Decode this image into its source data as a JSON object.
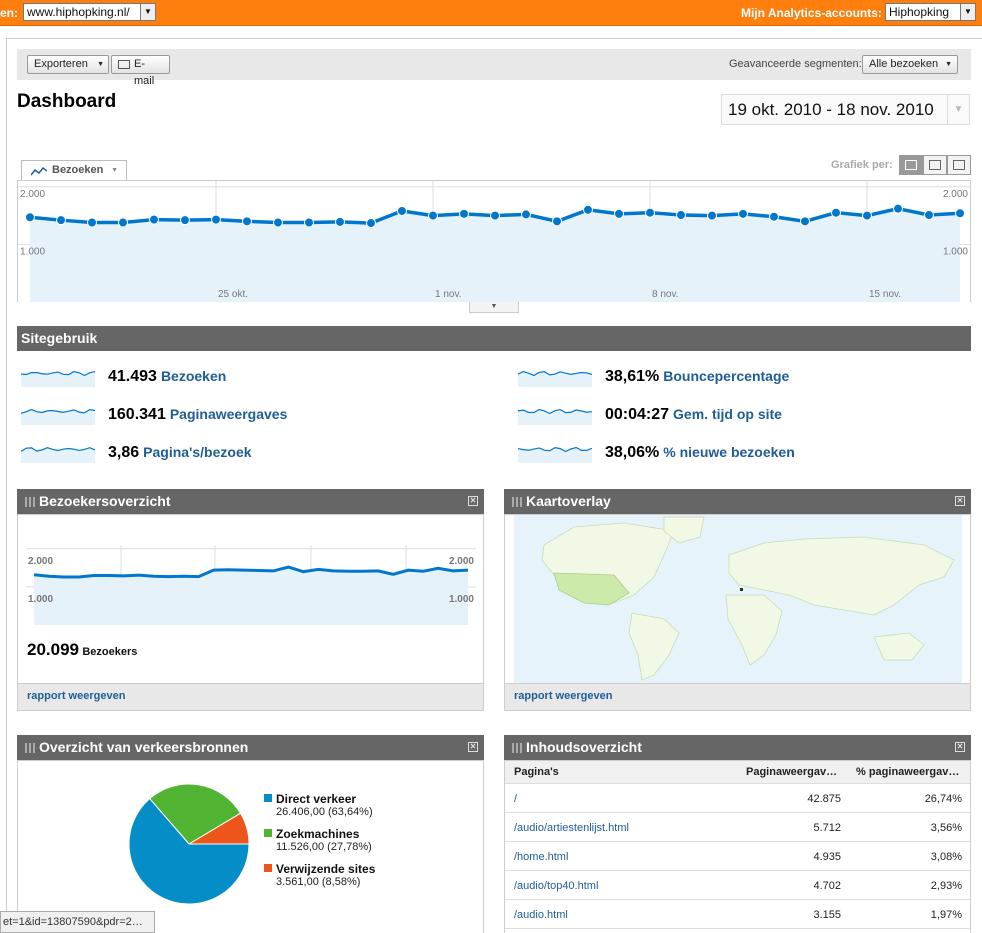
{
  "topbar": {
    "profile_label": "en:",
    "profile_value": "www.hiphopking.nl/",
    "accounts_label": "Mijn Analytics-accounts:",
    "accounts_value": "Hiphopking"
  },
  "toolbar": {
    "export_label": "Exporteren",
    "email_label": "E-mail",
    "segments_label": "Geavanceerde segmenten:",
    "segments_value": "Alle bezoeken"
  },
  "page_title": "Dashboard",
  "date_range": "19 okt. 2010 - 18 nov. 2010",
  "main_chart": {
    "metric_tab": "Bezoeken",
    "graph_per_label": "Grafiek per:"
  },
  "chart_data": [
    {
      "type": "line",
      "series": [
        {
          "values": [
            1470,
            1420,
            1380,
            1380,
            1430,
            1420,
            1430,
            1400,
            1380,
            1380,
            1390,
            1370,
            1580,
            1500,
            1530,
            1500,
            1520,
            1400,
            1600,
            1530,
            1550,
            1510,
            1500,
            1530,
            1480,
            1400,
            1550,
            1500,
            1620,
            1510,
            1540
          ]
        }
      ],
      "x_tick_labels": [
        "25 okt.",
        "1 nov.",
        "8 nov.",
        "15 nov."
      ],
      "y_tick_labels": [
        "2.000",
        "1.000"
      ],
      "ylim": [
        0,
        2100
      ]
    },
    {
      "type": "line",
      "series": [
        {
          "values": [
            1320,
            1280,
            1260,
            1260,
            1300,
            1300,
            1290,
            1310,
            1280,
            1270,
            1280,
            1270,
            1440,
            1450,
            1440,
            1430,
            1420,
            1520,
            1400,
            1460,
            1420,
            1410,
            1410,
            1420,
            1330,
            1440,
            1410,
            1490,
            1420,
            1440
          ]
        }
      ],
      "y_tick_labels": [
        "2.000",
        "1.000"
      ],
      "ylim": [
        0,
        2100
      ]
    },
    {
      "type": "pie",
      "values": [
        63.64,
        27.78,
        8.58
      ],
      "colors": [
        "#058dc7",
        "#50b432",
        "#ed561b"
      ]
    }
  ],
  "site_usage": {
    "title": "Sitegebruik",
    "metrics": [
      {
        "value": "41.493",
        "label": "Bezoeken"
      },
      {
        "value": "160.341",
        "label": "Paginaweergaves"
      },
      {
        "value": "3,86",
        "label": "Pagina's/bezoek"
      },
      {
        "value": "38,61%",
        "label": "Bouncepercentage"
      },
      {
        "value": "00:04:27",
        "label": "Gem. tijd op site"
      },
      {
        "value": "38,06%",
        "label": "% nieuwe bezoeken"
      }
    ]
  },
  "visitors_panel": {
    "title": "Bezoekersoverzicht",
    "total": "20.099",
    "total_label": "Bezoekers",
    "link": "rapport weergeven"
  },
  "map_panel": {
    "title": "Kaartoverlay",
    "link": "rapport weergeven"
  },
  "traffic_panel": {
    "title": "Overzicht van verkeersbronnen",
    "sources": [
      {
        "name": "Direct verkeer",
        "detail": "26.406,00 (63,64%)"
      },
      {
        "name": "Zoekmachines",
        "detail": "11.526,00 (27,78%)"
      },
      {
        "name": "Verwijzende sites",
        "detail": "3.561,00 (8,58%)"
      }
    ]
  },
  "content_panel": {
    "title": "Inhoudsoverzicht",
    "columns": [
      "Pagina's",
      "Paginaweergav…",
      "% paginaweergav…"
    ],
    "rows": [
      [
        "/",
        "42.875",
        "26,74%"
      ],
      [
        "/audio/artiestenlijst.html",
        "5.712",
        "3,56%"
      ],
      [
        "/home.html",
        "4.935",
        "3,08%"
      ],
      [
        "/audio/top40.html",
        "4.702",
        "2,93%"
      ],
      [
        "/audio.html",
        "3.155",
        "1,97%"
      ]
    ]
  },
  "status_bar": "et=1&id=13807590&pdr=2…",
  "colors": {
    "accent": "#ff7f0e",
    "line": "#0077cc",
    "fill": "#e6f2fa",
    "link": "#1f5d96"
  }
}
